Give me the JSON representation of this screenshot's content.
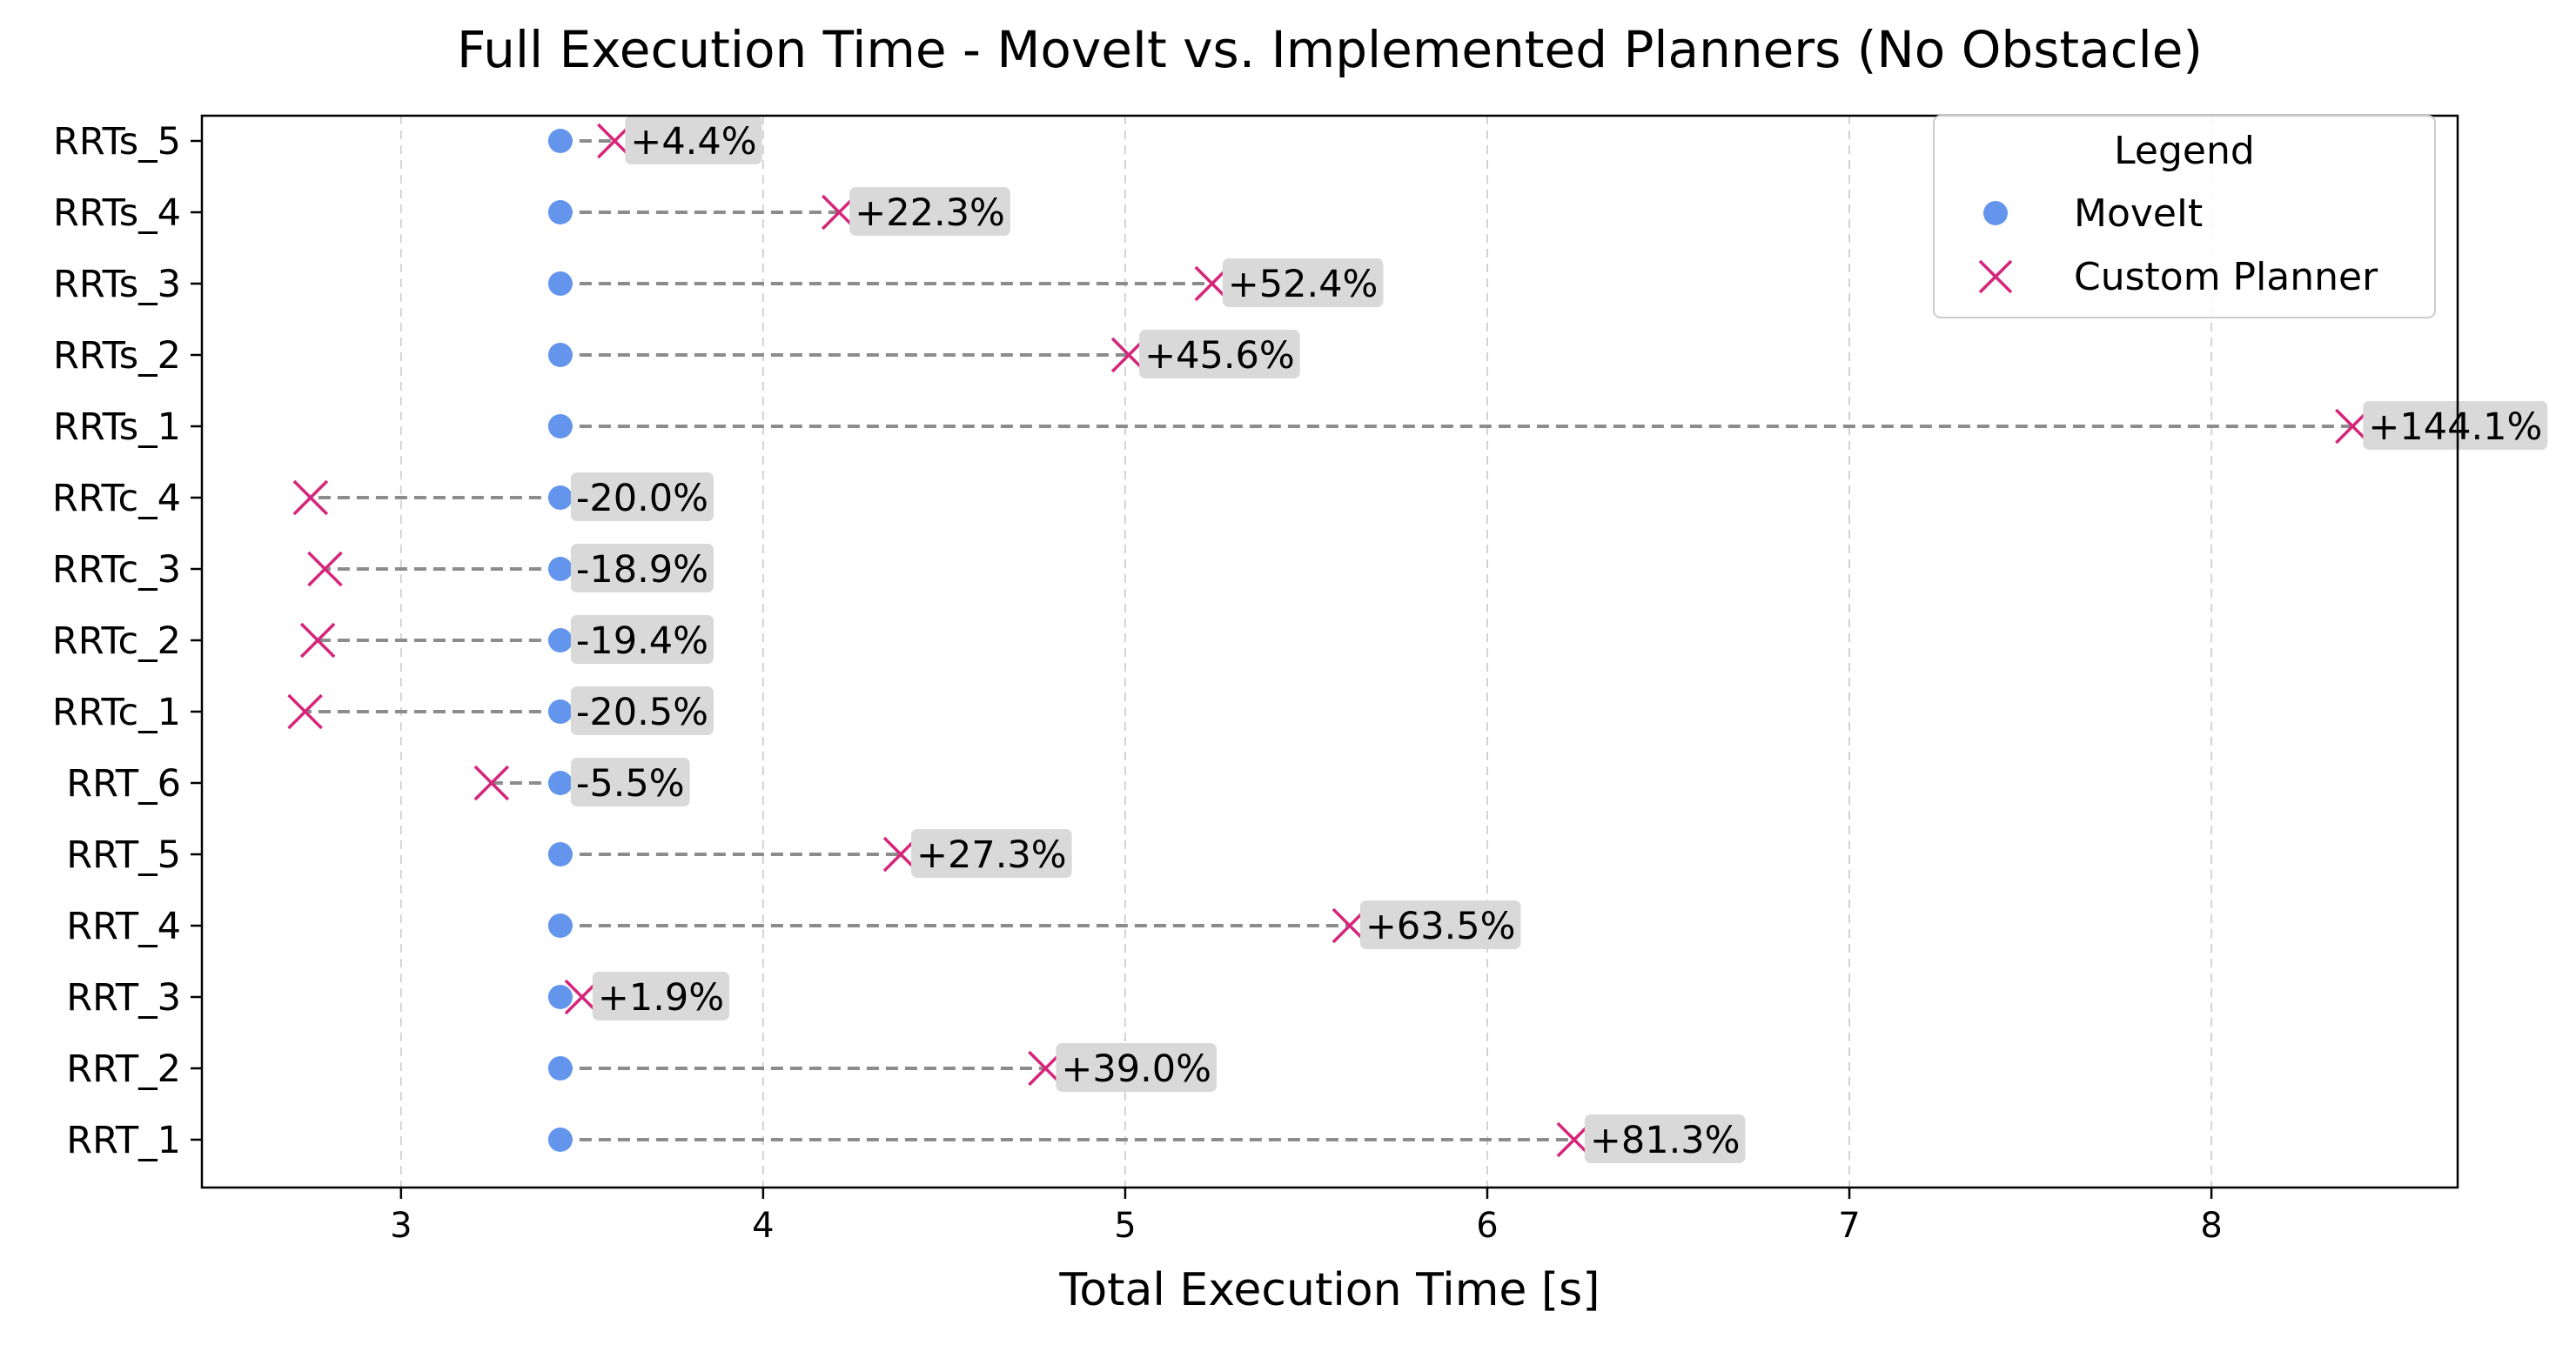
{
  "chart_data": {
    "type": "dumbbell",
    "title": "Full Execution Time - MoveIt vs. Implemented Planners (No Obstacle)",
    "xlabel": "Total Execution Time [s]",
    "ylabel": "",
    "xlim": [
      2.45,
      8.68
    ],
    "xticks": [
      3,
      4,
      5,
      6,
      7,
      8
    ],
    "grid": "x-dashed",
    "legend": {
      "title": "Legend",
      "placement": "top-right",
      "items": [
        {
          "label": "MoveIt",
          "marker": "circle",
          "color": "#6495ED"
        },
        {
          "label": "Custom Planner",
          "marker": "x",
          "color": "#D6247A"
        }
      ]
    },
    "categories": [
      "RRT_1",
      "RRT_2",
      "RRT_3",
      "RRT_4",
      "RRT_5",
      "RRT_6",
      "RRTc_1",
      "RRTc_2",
      "RRTc_3",
      "RRTc_4",
      "RRTs_1",
      "RRTs_2",
      "RRTs_3",
      "RRTs_4",
      "RRTs_5"
    ],
    "series": [
      {
        "name": "MoveIt",
        "values": [
          3.44,
          3.44,
          3.44,
          3.44,
          3.44,
          3.44,
          3.44,
          3.44,
          3.44,
          3.44,
          3.44,
          3.44,
          3.44,
          3.44,
          3.44
        ]
      },
      {
        "name": "Custom Planner",
        "values": [
          6.24,
          4.78,
          3.5,
          5.62,
          4.38,
          3.25,
          2.735,
          2.77,
          2.79,
          2.75,
          8.39,
          5.01,
          5.24,
          4.21,
          3.59
        ]
      }
    ],
    "annotations": [
      "+81.3%",
      "+39.0%",
      "+1.9%",
      "+63.5%",
      "+27.3%",
      "-5.5%",
      "-20.5%",
      "-19.4%",
      "-18.9%",
      "-20.0%",
      "+144.1%",
      "+45.6%",
      "+52.4%",
      "+22.3%",
      "+4.4%"
    ],
    "colors": {
      "moveit": "#6495ED",
      "custom": "#D6247A",
      "connector": "#8C8C8C",
      "label_bg": "#D9D9D9",
      "grid": "#D3D3D3"
    }
  }
}
